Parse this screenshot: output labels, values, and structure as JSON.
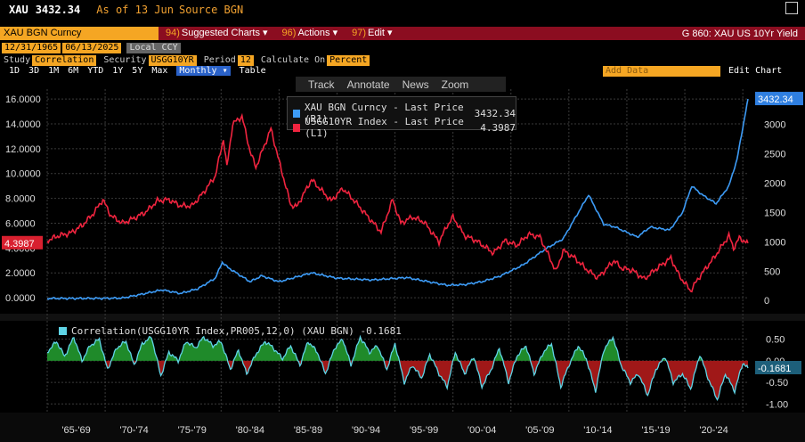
{
  "header": {
    "ticker": "XAU",
    "price": "3432.34",
    "asof": "As of 13 Jun",
    "source": "Source BGN",
    "security_label": "XAU BGN Curncy",
    "tabs": [
      {
        "num": "94)",
        "label": "Suggested Charts ▾"
      },
      {
        "num": "96)",
        "label": "Actions ▾"
      },
      {
        "num": "97)",
        "label": "Edit ▾"
      }
    ],
    "graph_title": "G 860: XAU US 10Yr Yield"
  },
  "controls": {
    "start_date": "12/31/1965",
    "end_date": "06/13/2025",
    "currency": "Local CCY",
    "study_label": "Study",
    "study_value": "Correlation",
    "security_label": "Security",
    "security_value": "USGG10YR",
    "period_label": "Period",
    "period_value": "12",
    "calc_label": "Calculate On",
    "calc_value": "Percent",
    "ranges": [
      "1D",
      "3D",
      "1M",
      "6M",
      "YTD",
      "1Y",
      "5Y",
      "Max"
    ],
    "frequency": "Monthly ▾",
    "table": "Table",
    "add_data": "Add Data",
    "edit_chart": "Edit Chart",
    "toolbar": [
      "Track",
      "Annotate",
      "News",
      "Zoom"
    ]
  },
  "colors": {
    "gold": "#3d9bf5",
    "yield": "#f0243f",
    "corr_line": "#5fd4e6",
    "pos_fill": "#1f8a2a",
    "neg_fill": "#a01818",
    "accent": "#f5a623"
  },
  "chart_data": [
    {
      "type": "line",
      "x_range": [
        1965,
        2025.45
      ],
      "xticks": [
        "'65-'69",
        "'70-'74",
        "'75-'79",
        "'80-'84",
        "'85-'89",
        "'90-'94",
        "'95-'99",
        "'00-'04",
        "'05-'09",
        "'10-'14",
        "'15-'19",
        "'20-'24"
      ],
      "left_axis": {
        "ylim": [
          -1.0,
          16.8
        ],
        "ticks": [
          "0.0000",
          "2.0000",
          "4.0000",
          "6.0000",
          "8.0000",
          "10.0000",
          "12.0000",
          "14.0000",
          "16.0000"
        ],
        "last_label": "4.3987"
      },
      "right_axis": {
        "ylim": [
          -164,
          3600
        ],
        "ticks": [
          "0",
          "500",
          "1000",
          "1500",
          "2000",
          "2500",
          "3000"
        ],
        "last_label": "3432.34"
      },
      "series": [
        {
          "name": "XAU BGN Curncy - Last Price (R1)",
          "last": "3432.34",
          "axis": "right",
          "x": [
            1965,
            1970,
            1971.5,
            1973,
            1974.9,
            1976.5,
            1978,
            1979.5,
            1980.1,
            1980.6,
            1982.5,
            1983.5,
            1985,
            1987.8,
            1990,
            1993,
            1996,
            1999.5,
            2001,
            2002.5,
            2004,
            2006,
            2008,
            2009.5,
            2011.7,
            2013,
            2014,
            2015.9,
            2017,
            2018.7,
            2019.8,
            2020.6,
            2021.5,
            2022.7,
            2023.8,
            2024.5,
            2025.45
          ],
          "y": [
            35,
            36,
            42,
            100,
            180,
            120,
            200,
            380,
            650,
            560,
            320,
            420,
            320,
            470,
            380,
            350,
            390,
            260,
            270,
            320,
            410,
            600,
            880,
            1050,
            1800,
            1300,
            1250,
            1080,
            1250,
            1200,
            1500,
            1950,
            1800,
            1650,
            1950,
            2400,
            3432
          ]
        },
        {
          "name": "USGG10YR Index - Last Price (L1)",
          "last": "4.3987",
          "axis": "left",
          "x": [
            1965,
            1966,
            1967,
            1968,
            1969,
            1969.8,
            1970.5,
            1971.5,
            1972.5,
            1973.5,
            1974.5,
            1975.5,
            1976.5,
            1977.5,
            1978.5,
            1979.5,
            1980.2,
            1980.5,
            1981,
            1981.8,
            1982.5,
            1983,
            1984.3,
            1985,
            1986,
            1986.5,
            1987.8,
            1988.5,
            1989.5,
            1990.5,
            1991.5,
            1992.5,
            1993.8,
            1994.8,
            1995.5,
            1996.5,
            1997.5,
            1998.8,
            1999.5,
            2000,
            2001,
            2002,
            2003.5,
            2004.5,
            2005.5,
            2006.5,
            2007.5,
            2008.9,
            2009.5,
            2010.5,
            2011.5,
            2012.5,
            2013.5,
            2013.9,
            2014.5,
            2015.5,
            2016.5,
            2017.5,
            2018.8,
            2019.5,
            2020.5,
            2021.2,
            2022,
            2022.5,
            2023.8,
            2024.2,
            2024.7,
            2025.45
          ],
          "y": [
            4.6,
            5.0,
            5.2,
            5.8,
            6.8,
            7.9,
            6.6,
            6.0,
            6.4,
            6.9,
            7.8,
            7.9,
            7.4,
            7.4,
            8.5,
            9.8,
            12.8,
            10.5,
            14.0,
            14.6,
            11.8,
            10.5,
            13.6,
            11.0,
            7.5,
            7.3,
            9.5,
            8.8,
            7.8,
            8.8,
            7.8,
            6.7,
            5.3,
            7.9,
            6.0,
            6.5,
            6.1,
            4.5,
            5.8,
            6.5,
            5.0,
            4.6,
            3.6,
            4.6,
            4.2,
            5.1,
            4.9,
            2.1,
            3.8,
            3.2,
            2.3,
            1.6,
            2.6,
            3.0,
            2.4,
            2.2,
            1.5,
            2.3,
            3.2,
            1.8,
            0.55,
            1.6,
            2.6,
            3.2,
            5.0,
            4.0,
            4.8,
            4.3987
          ]
        }
      ]
    },
    {
      "type": "area",
      "title": "Correlation(USGG10YR Index,PR005,12,0) (XAU BGN) -0.1681",
      "last_label": "-0.1681",
      "ylim": [
        -1.18,
        0.72
      ],
      "yticks": [
        "0.50",
        "0.00",
        "-0.50",
        "-1.00"
      ],
      "series": [
        {
          "name": "Correlation(USGG10YR Index,PR005,12,0) (XAU BGN)",
          "x": [
            1965,
            1965.8,
            1966.5,
            1967.3,
            1968,
            1968.7,
            1969.5,
            1970.2,
            1971,
            1971.8,
            1972.5,
            1973.2,
            1974,
            1974.8,
            1975.5,
            1976.3,
            1977,
            1977.8,
            1978.5,
            1979.3,
            1980,
            1980.8,
            1981.5,
            1982.2,
            1983,
            1983.8,
            1984.5,
            1985.3,
            1986,
            1986.8,
            1987.5,
            1988.3,
            1989,
            1989.8,
            1990.5,
            1991.2,
            1992,
            1992.8,
            1993.5,
            1994.3,
            1995,
            1995.8,
            1996.5,
            1997.3,
            1998,
            1998.8,
            1999.5,
            2000.2,
            2001,
            2001.8,
            2002.5,
            2003.3,
            2004,
            2004.8,
            2005.5,
            2006.3,
            2007,
            2007.8,
            2008.5,
            2009.3,
            2010,
            2010.8,
            2011.5,
            2012.3,
            2013,
            2013.8,
            2014.5,
            2015.3,
            2016,
            2016.8,
            2017.5,
            2018.3,
            2019,
            2019.8,
            2020.5,
            2021.3,
            2022,
            2022.8,
            2023.5,
            2024.3,
            2025,
            2025.45
          ],
          "y": [
            0.2,
            0.45,
            0.1,
            0.55,
            0.0,
            0.35,
            0.5,
            -0.2,
            0.3,
            0.45,
            -0.1,
            0.4,
            0.55,
            -0.35,
            0.2,
            0.0,
            0.45,
            0.3,
            0.55,
            0.35,
            0.45,
            -0.2,
            0.25,
            -0.3,
            0.15,
            0.45,
            0.3,
            0.05,
            0.35,
            -0.1,
            0.45,
            0.2,
            -0.3,
            0.3,
            0.5,
            -0.1,
            0.55,
            0.2,
            0.35,
            -0.2,
            0.4,
            -0.5,
            -0.1,
            -0.4,
            0.15,
            -0.3,
            -0.6,
            0.2,
            -0.3,
            0.1,
            -0.6,
            -0.2,
            0.3,
            -0.5,
            0.1,
            0.35,
            -0.3,
            0.2,
            0.4,
            -0.6,
            -0.1,
            0.35,
            0.05,
            -0.7,
            0.25,
            0.55,
            -0.1,
            -0.5,
            -0.3,
            -0.8,
            -0.2,
            0.1,
            -0.5,
            -0.3,
            -0.65,
            0.15,
            -0.4,
            -0.9,
            -0.3,
            -0.7,
            -0.05,
            -0.1681
          ]
        }
      ]
    }
  ]
}
